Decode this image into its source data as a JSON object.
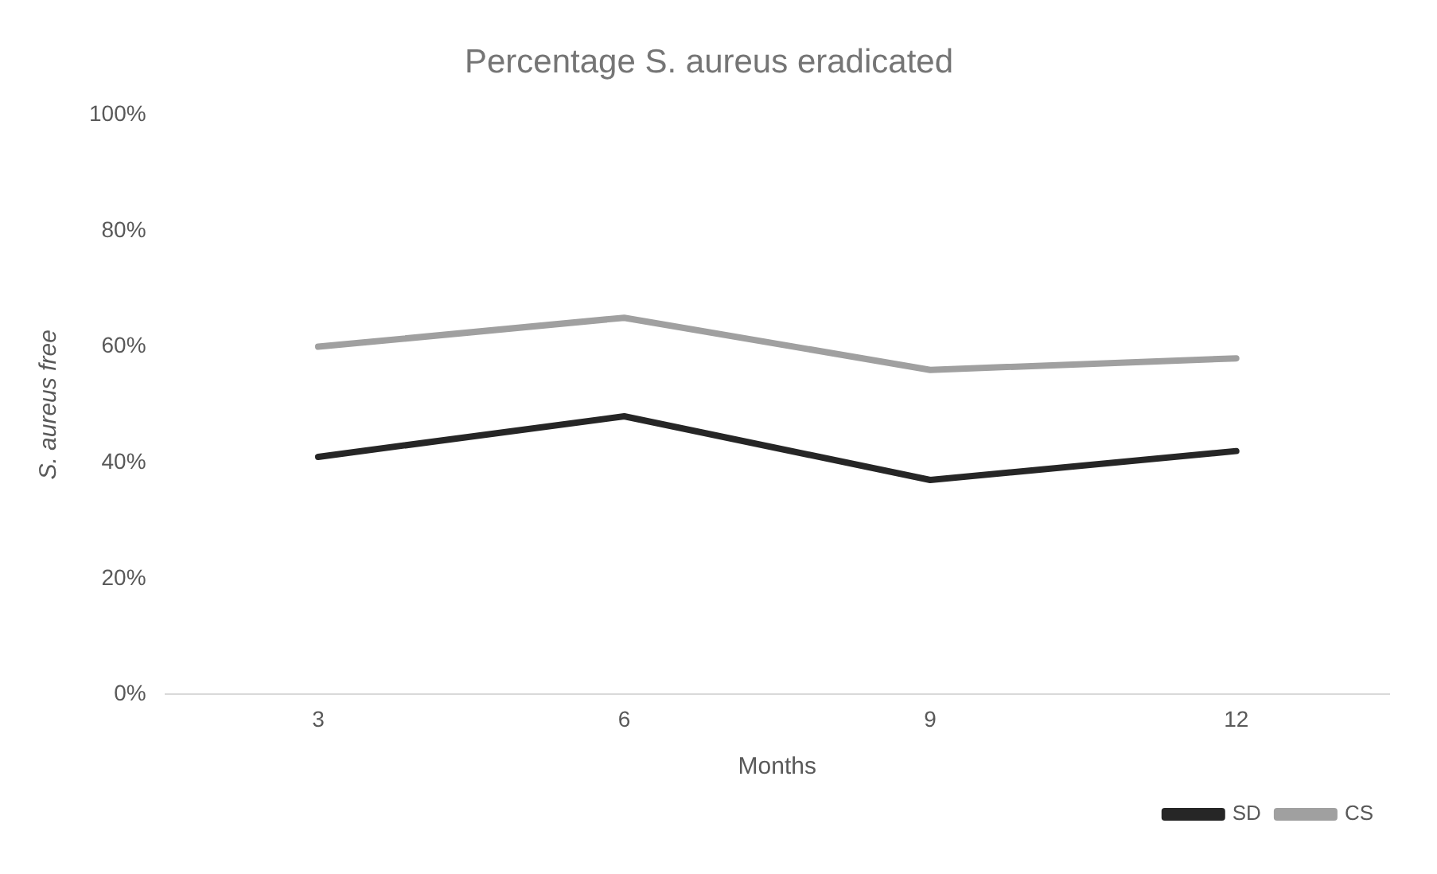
{
  "chart_data": {
    "type": "line",
    "title": "Percentage S. aureus eradicated",
    "xlabel": "Months",
    "ylabel": "S. aureus free",
    "categories": [
      "3",
      "6",
      "9",
      "12"
    ],
    "series": [
      {
        "name": "SD",
        "color": "#262626",
        "values": [
          41,
          48,
          37,
          42
        ]
      },
      {
        "name": "CS",
        "color": "#a0a0a0",
        "values": [
          60,
          65,
          56,
          58
        ]
      }
    ],
    "ylim": [
      0,
      100
    ],
    "yticks": [
      {
        "value": 0,
        "label": "0%"
      },
      {
        "value": 20,
        "label": "20%"
      },
      {
        "value": 40,
        "label": "40%"
      },
      {
        "value": 60,
        "label": "60%"
      },
      {
        "value": 80,
        "label": "80%"
      },
      {
        "value": 100,
        "label": "100%"
      }
    ],
    "grid": false,
    "legend": "bottom right",
    "marker": "none",
    "line_style": "solid"
  }
}
